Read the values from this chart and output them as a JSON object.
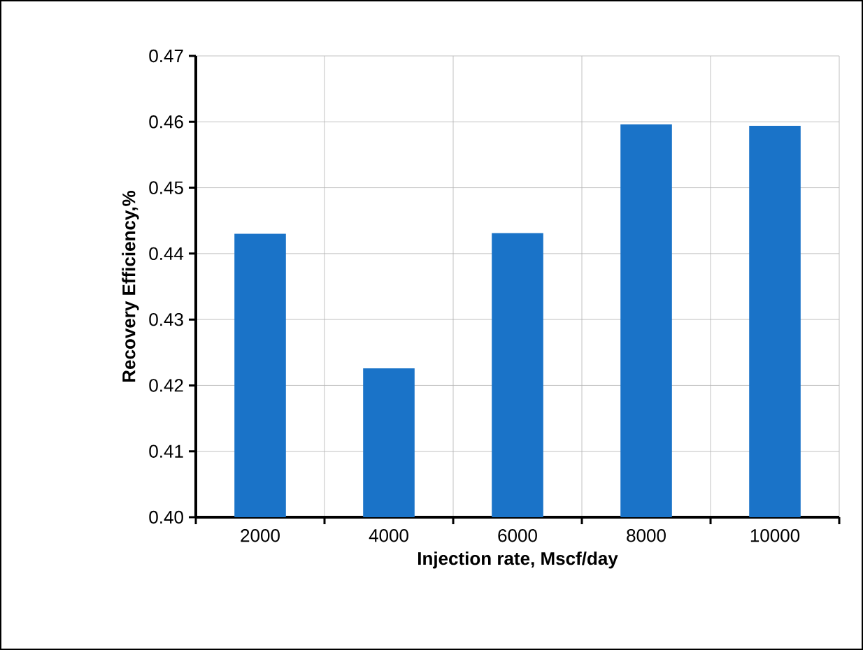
{
  "chart_data": {
    "type": "bar",
    "xlabel": "Injection rate, Mscf/day",
    "ylabel": "Recovery Efficiency,%",
    "categories": [
      "2000",
      "4000",
      "6000",
      "8000",
      "10000"
    ],
    "values": [
      0.443,
      0.4226,
      0.4431,
      0.4596,
      0.4594
    ],
    "color": "#1a73c8",
    "ylim": [
      0.4,
      0.47
    ],
    "yticks": [
      {
        "value": 0.4,
        "label": "0.40"
      },
      0.41,
      0.42,
      0.43,
      0.44,
      0.45,
      0.46,
      0.47
    ],
    "grid": true
  }
}
